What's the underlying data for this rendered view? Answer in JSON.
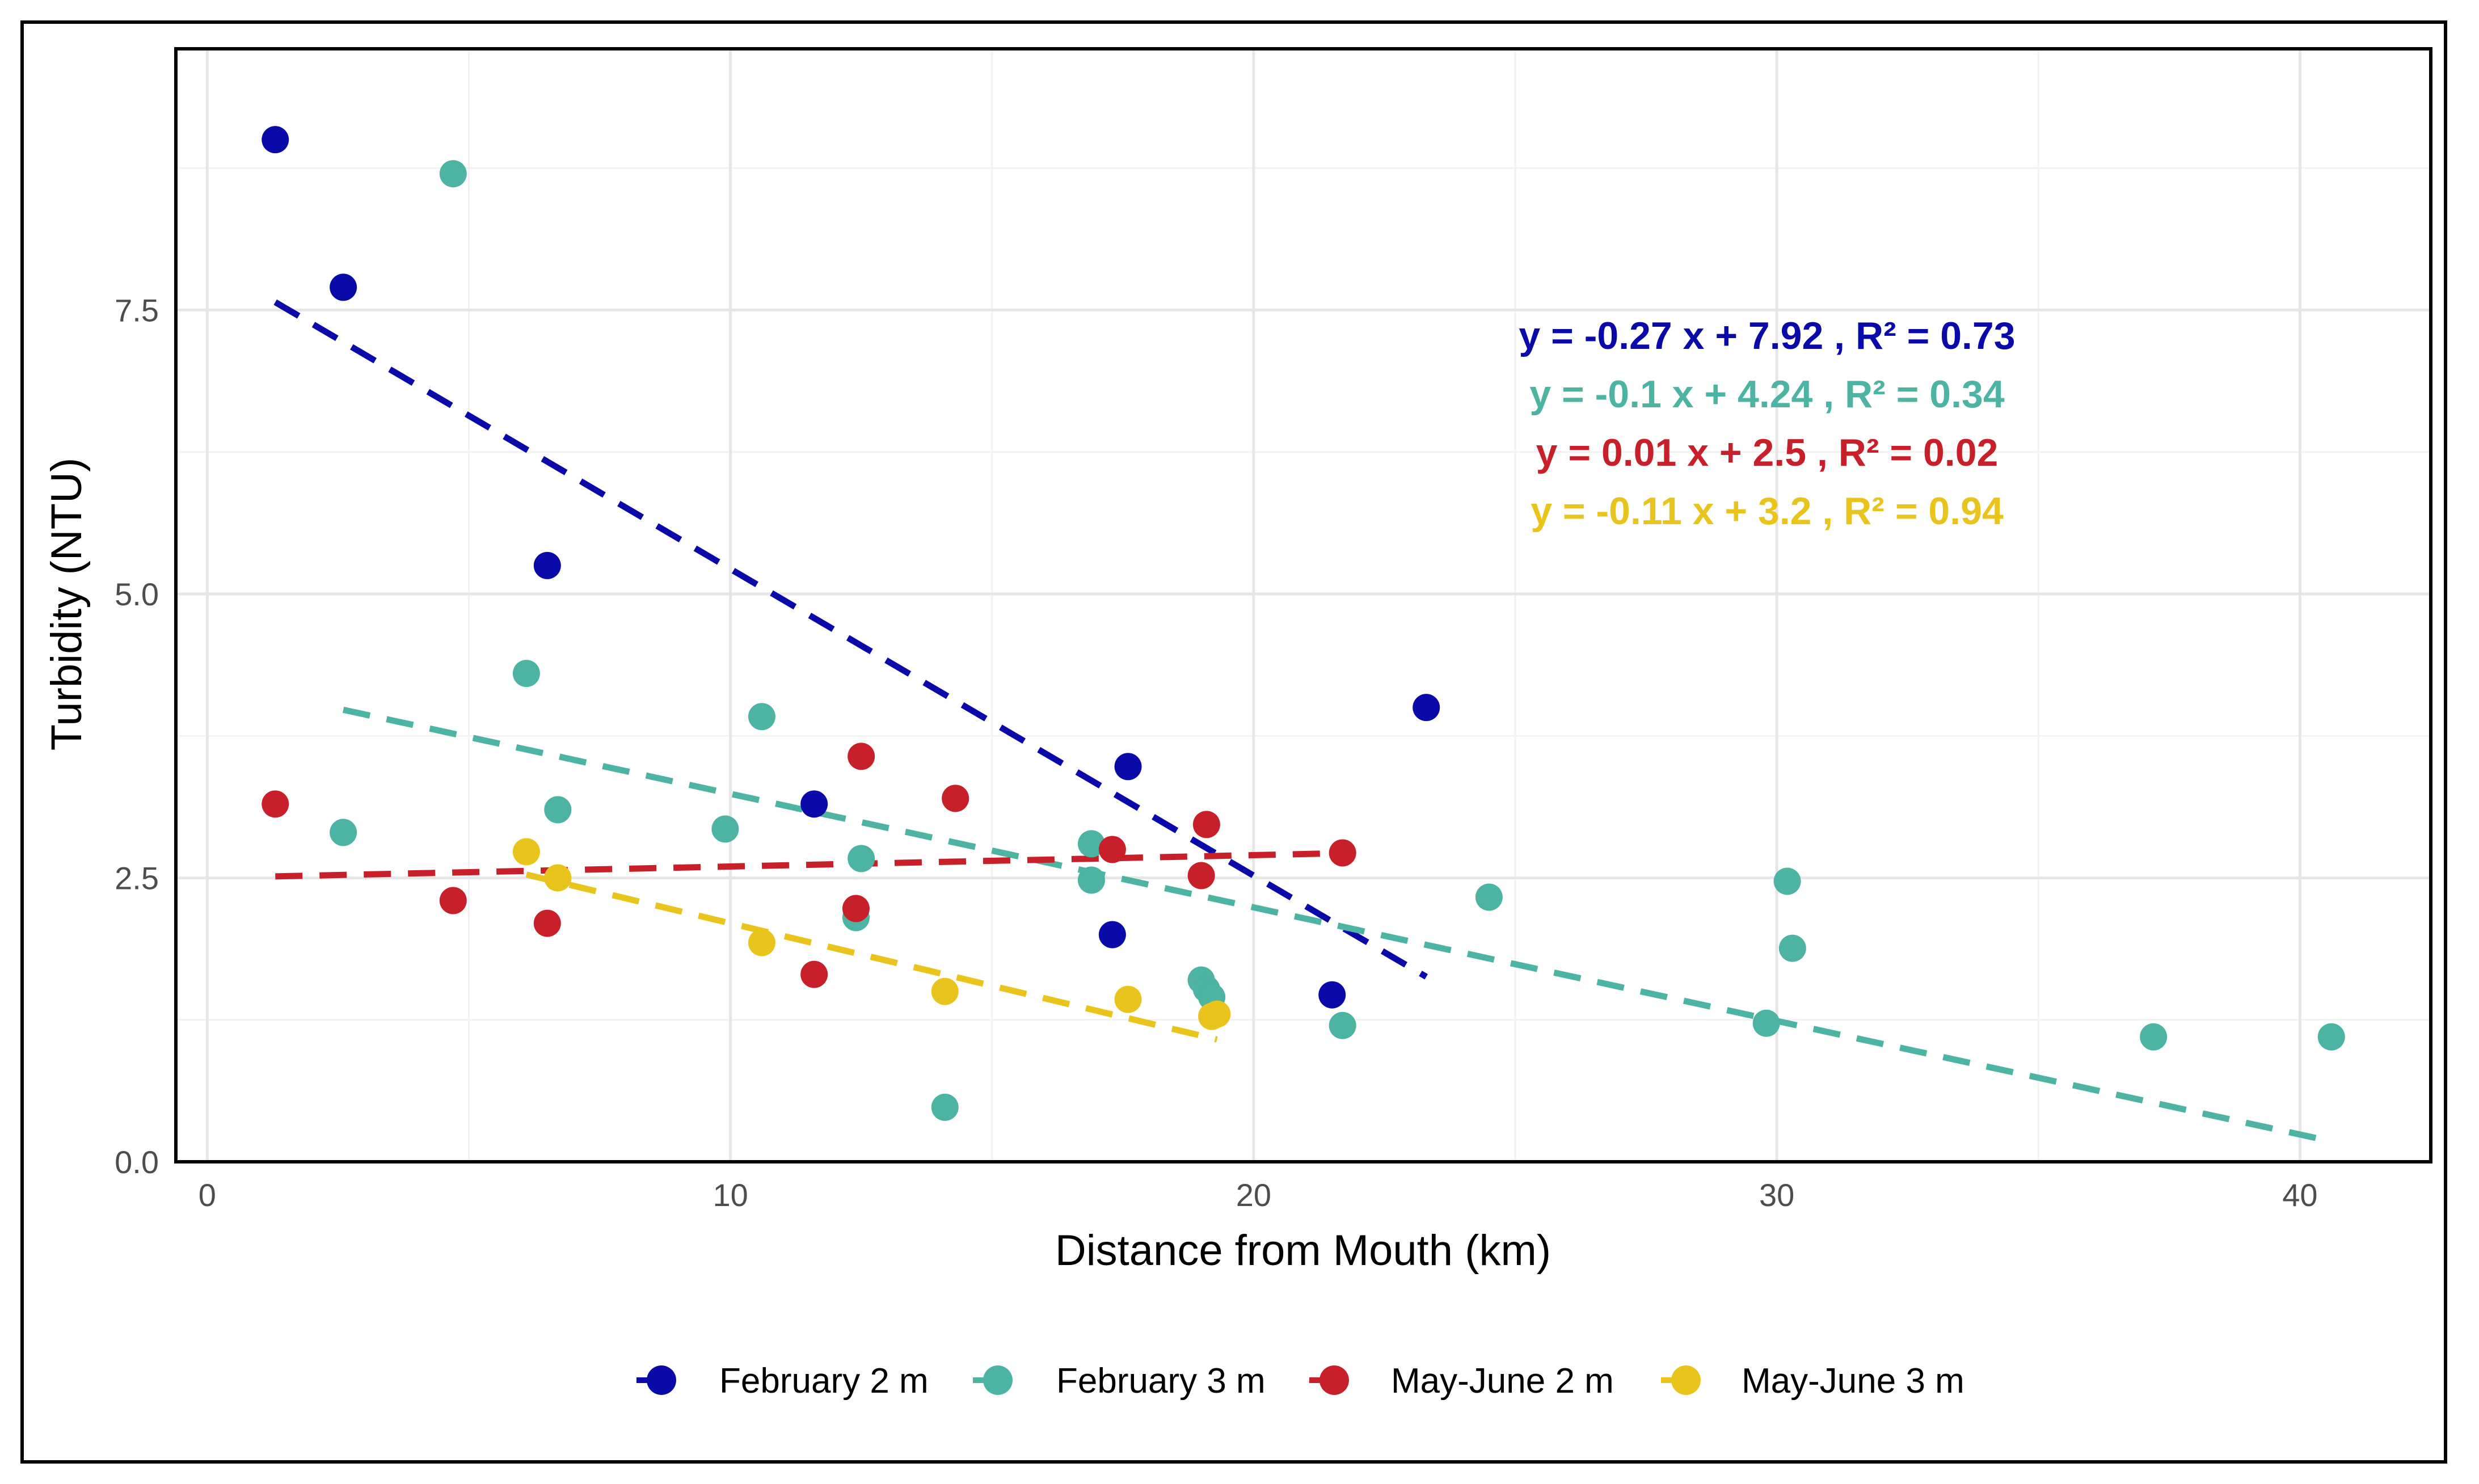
{
  "chart_data": {
    "type": "scatter",
    "title": "",
    "xlabel": "Distance from Mouth (km)",
    "ylabel": "Turbidity (NTU)",
    "xlim": [
      -0.6,
      42.5
    ],
    "ylim": [
      0,
      9.8
    ],
    "x_ticks": [
      0,
      10,
      20,
      30,
      40
    ],
    "x_tick_labels": [
      "0",
      "10",
      "20",
      "30",
      "40"
    ],
    "y_ticks": [
      0,
      2.5,
      5,
      7.5
    ],
    "y_tick_labels": [
      "0.0",
      "2.5",
      "5.0",
      "7.5"
    ],
    "grid": true,
    "legend_position": "bottom",
    "series": [
      {
        "name": "February 2 m",
        "color": "#0a0aa8",
        "x": [
          1.3,
          2.6,
          6.5,
          11.6,
          17.3,
          17.6,
          21.5,
          23.3
        ],
        "y": [
          9.0,
          7.7,
          5.25,
          3.15,
          2.0,
          3.48,
          1.47,
          4.0
        ],
        "fit": {
          "x": [
            1.3,
            23.3
          ],
          "slope": -0.27,
          "intercept": 7.92
        },
        "equation": "y =  -0.27 x +  7.92 , R² =  0.73"
      },
      {
        "name": "February 3 m",
        "color": "#4db3a2",
        "x": [
          2.6,
          4.7,
          6.1,
          6.7,
          9.9,
          10.6,
          12.4,
          12.5,
          14.1,
          14.3,
          16.9,
          16.9,
          19.0,
          19.1,
          19.2,
          21.7,
          24.5,
          29.8,
          30.2,
          30.3,
          37.2,
          40.6
        ],
        "y": [
          2.9,
          8.7,
          4.3,
          3.1,
          2.93,
          3.92,
          2.15,
          2.67,
          0.48,
          3.2,
          2.8,
          2.48,
          1.6,
          1.52,
          1.45,
          1.2,
          2.33,
          1.22,
          2.47,
          1.88,
          1.1,
          1.1
        ],
        "fit": {
          "x": [
            2.6,
            40.6
          ],
          "slope": -0.1,
          "intercept": 4.24
        },
        "equation": "y =  -0.1 x +  4.24 , R² =  0.34"
      },
      {
        "name": "May-June 2 m",
        "color": "#c8202a",
        "x": [
          1.3,
          4.7,
          6.5,
          11.6,
          12.4,
          12.5,
          14.3,
          17.3,
          19.0,
          19.1,
          21.7
        ],
        "y": [
          3.15,
          2.3,
          2.1,
          1.65,
          2.23,
          3.57,
          3.2,
          2.75,
          2.52,
          2.97,
          2.72
        ],
        "fit": {
          "x": [
            1.3,
            21.7
          ],
          "slope": 0.01,
          "intercept": 2.5
        },
        "equation": "y =  0.01 x +  2.5 , R² =  0.02"
      },
      {
        "name": "May-June 3 m",
        "color": "#e8c41c",
        "x": [
          6.1,
          6.7,
          10.6,
          14.1,
          17.6,
          19.2,
          19.3
        ],
        "y": [
          2.73,
          2.5,
          1.93,
          1.5,
          1.43,
          1.28,
          1.3
        ],
        "fit": {
          "x": [
            6.1,
            19.3
          ],
          "slope": -0.11,
          "intercept": 3.2
        },
        "equation": "y =  -0.11 x +  3.2 , R² =  0.94"
      }
    ]
  }
}
